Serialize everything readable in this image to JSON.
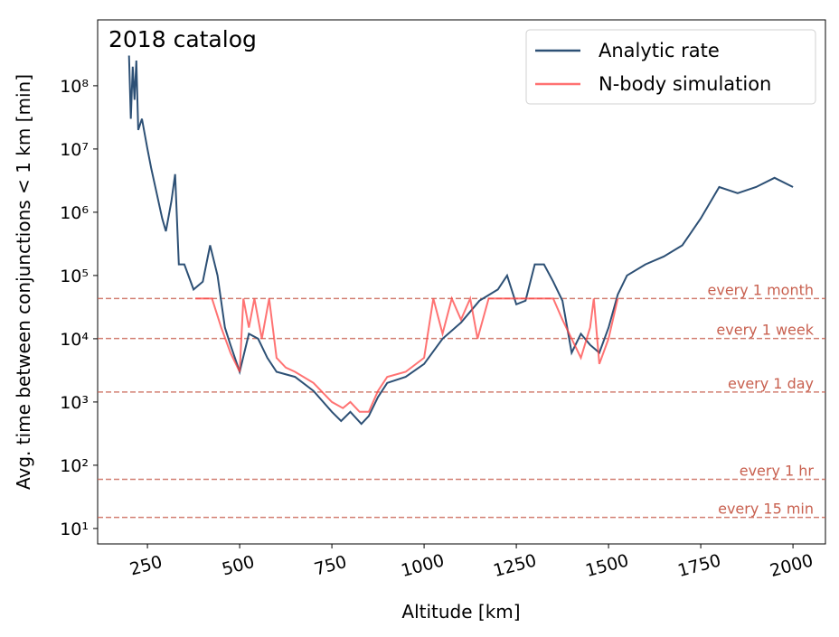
{
  "chart_data": {
    "type": "line",
    "annotation": "2018 catalog",
    "xlabel": "Altitude [km]",
    "ylabel": "Avg. time between conjunctions < 1 km [min]",
    "log_y": true,
    "legend": "upper right",
    "xlim": [
      115,
      2088
    ],
    "ylim": [
      5.7,
      1100000000
    ],
    "xticks": [
      250,
      500,
      750,
      1000,
      1250,
      1500,
      1750,
      2000
    ],
    "yticks": [
      {
        "value": 10,
        "label": "10¹"
      },
      {
        "value": 100,
        "label": "10²"
      },
      {
        "value": 1000,
        "label": "10³"
      },
      {
        "value": 10000,
        "label": "10⁴"
      },
      {
        "value": 100000,
        "label": "10⁵"
      },
      {
        "value": 1000000,
        "label": "10⁶"
      },
      {
        "value": 10000000,
        "label": "10⁷"
      },
      {
        "value": 100000000,
        "label": "10⁸"
      }
    ],
    "reference_lines": [
      {
        "value": 43200,
        "label": "every 1 month"
      },
      {
        "value": 10080,
        "label": "every 1 week"
      },
      {
        "value": 1440,
        "label": "every 1 day"
      },
      {
        "value": 60,
        "label": "every 1 hr"
      },
      {
        "value": 15,
        "label": "every 15 min"
      }
    ],
    "reference_color": "#c8604f",
    "series": [
      {
        "name": "Analytic rate",
        "color": "#2d5075",
        "x": [
          200,
          205,
          210,
          215,
          220,
          225,
          235,
          250,
          260,
          275,
          290,
          300,
          315,
          325,
          335,
          350,
          375,
          400,
          420,
          440,
          460,
          475,
          500,
          525,
          550,
          575,
          600,
          650,
          700,
          750,
          775,
          800,
          830,
          850,
          875,
          900,
          950,
          1000,
          1050,
          1100,
          1150,
          1200,
          1225,
          1250,
          1275,
          1300,
          1325,
          1350,
          1375,
          1400,
          1425,
          1450,
          1475,
          1500,
          1525,
          1550,
          1600,
          1650,
          1700,
          1750,
          1800,
          1850,
          1900,
          1950,
          2000
        ],
        "values": [
          300000000,
          30000000,
          200000000,
          60000000,
          250000000,
          20000000,
          30000000,
          10000000,
          5000000,
          2000000,
          800000,
          500000,
          1500000,
          4000000,
          150000,
          150000,
          60000,
          80000,
          300000,
          100000,
          15000,
          8000,
          3000,
          12000,
          10000,
          5000,
          3000,
          2500,
          1500,
          700,
          500,
          700,
          450,
          600,
          1200,
          2000,
          2500,
          4000,
          10000,
          18000,
          40000,
          60000,
          100000,
          35000,
          40000,
          150000,
          150000,
          80000,
          40000,
          6000,
          12000,
          8000,
          6000,
          15000,
          50000,
          100000,
          150000,
          200000,
          300000,
          800000,
          2500000,
          2000000,
          2500000,
          3500000,
          2500000
        ]
      },
      {
        "name": "N-body simulation",
        "color": "#ff4444",
        "x": [
          380,
          400,
          425,
          450,
          475,
          500,
          510,
          525,
          540,
          560,
          580,
          600,
          625,
          650,
          700,
          750,
          780,
          800,
          825,
          850,
          875,
          900,
          950,
          1000,
          1025,
          1050,
          1075,
          1100,
          1125,
          1145,
          1175,
          1200,
          1250,
          1300,
          1350,
          1375,
          1400,
          1425,
          1450,
          1460,
          1475,
          1500,
          1525
        ],
        "values": [
          43200,
          43200,
          43200,
          15000,
          6000,
          3000,
          43200,
          15000,
          43200,
          10000,
          43200,
          5000,
          3500,
          3000,
          2000,
          1000,
          800,
          1000,
          700,
          700,
          1500,
          2500,
          3000,
          5000,
          43200,
          12000,
          43200,
          20000,
          43200,
          10000,
          43200,
          43200,
          43200,
          43200,
          43200,
          20000,
          10000,
          5000,
          15000,
          43200,
          4000,
          10000,
          43200
        ]
      }
    ]
  }
}
